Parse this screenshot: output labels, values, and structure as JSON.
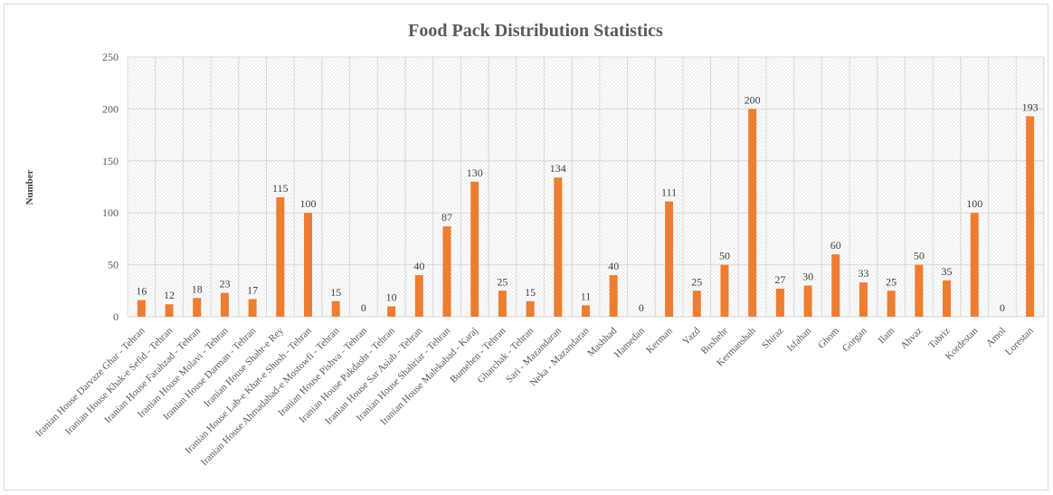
{
  "chart_data": {
    "type": "bar",
    "title": "Food Pack Distribution Statistics",
    "xlabel": "",
    "ylabel": "Number",
    "ylim": [
      0,
      250
    ],
    "yticks": [
      0,
      50,
      100,
      150,
      200,
      250
    ],
    "grid": true,
    "legend": "none",
    "bar_color": "#ED7D31",
    "categories": [
      "Iranian House Darvaze Ghar - Tehran",
      "Iranian House Khak-e Sefid - Tehran",
      "Iranian House Farahzad - Tehran",
      "Iranian House Molavi - Tehran",
      "Iranian House Darman - Tehran",
      "Iranian House Shahr-e Rey",
      "Iranian House Lab-e Khat-e Shush - Tehran",
      "Iranian House Ahmadabad-e Mostowfi - Tehran",
      "Iranian House Pishva - Tehran",
      "Iranian House Pakdasht - Tehran",
      "Iranian House Sar Asiab - Tehran",
      "Iranian House Shahriar - Tehran",
      "Iranian House Malekabad - Karaj",
      "Bumehen - Tehran",
      "Gharchak - Tehran",
      "Sari - Mazandaran",
      "Neka - Mazandaran",
      "Mashhad",
      "Hamedan",
      "Kerman",
      "Yazd",
      "Bushehr",
      "Kermanshah",
      "Shiraz",
      "Isfahan",
      "Ghom",
      "Gorgan",
      "Ilam",
      "Ahvaz",
      "Tabriz",
      "Kordestan",
      "Amol",
      "Lorestan"
    ],
    "values": [
      16,
      12,
      18,
      23,
      17,
      115,
      100,
      15,
      0,
      10,
      40,
      87,
      130,
      25,
      15,
      134,
      11,
      40,
      0,
      111,
      25,
      50,
      200,
      27,
      30,
      60,
      33,
      25,
      50,
      35,
      100,
      0,
      193
    ]
  }
}
